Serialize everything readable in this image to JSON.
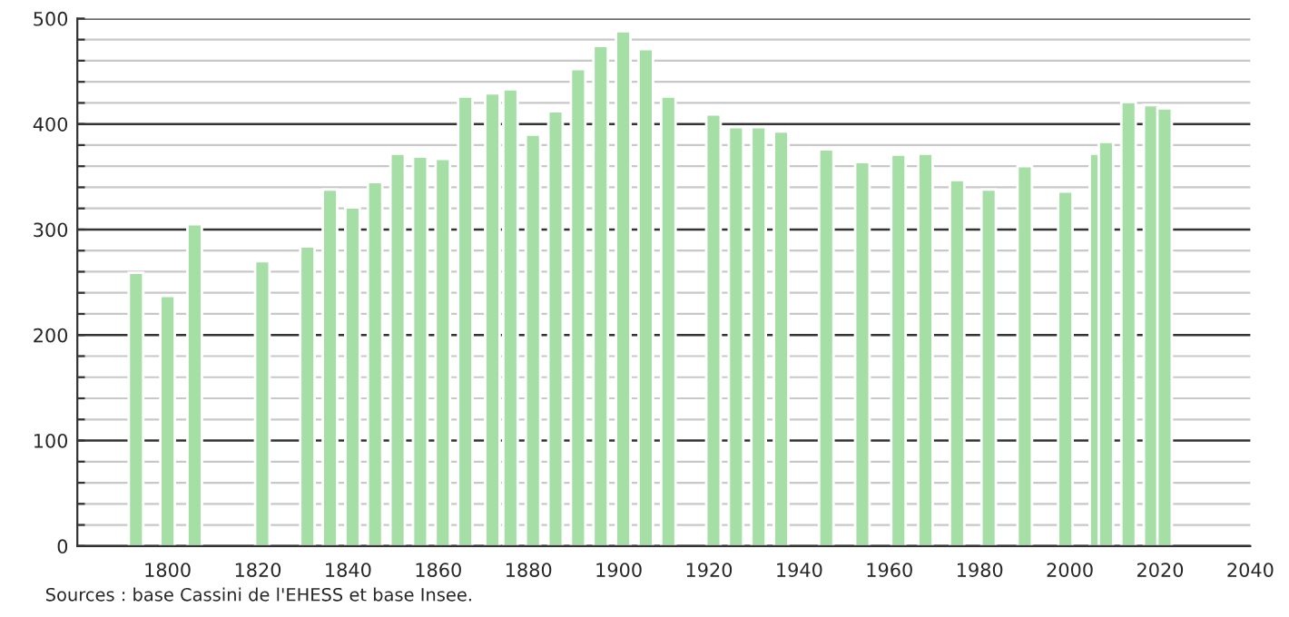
{
  "chart_data": {
    "type": "bar",
    "color": "#a6dfa6",
    "x": [
      1793,
      1800,
      1806,
      1821,
      1831,
      1836,
      1841,
      1846,
      1851,
      1856,
      1861,
      1866,
      1872,
      1876,
      1881,
      1886,
      1891,
      1896,
      1901,
      1906,
      1911,
      1921,
      1926,
      1931,
      1936,
      1946,
      1954,
      1962,
      1968,
      1975,
      1982,
      1990,
      1999,
      2006,
      2008,
      2013,
      2018,
      2021
    ],
    "values": [
      259,
      237,
      305,
      270,
      284,
      338,
      321,
      345,
      372,
      369,
      367,
      426,
      429,
      433,
      390,
      412,
      452,
      474,
      488,
      471,
      426,
      409,
      397,
      397,
      393,
      376,
      364,
      371,
      372,
      347,
      338,
      360,
      336,
      372,
      383,
      421,
      418,
      415
    ],
    "xlim": [
      1780,
      2040
    ],
    "xticks": [
      1800,
      1820,
      1840,
      1860,
      1880,
      1900,
      1920,
      1940,
      1960,
      1980,
      2000,
      2020,
      2040
    ],
    "ylim": [
      0,
      500
    ],
    "yticks": [
      0,
      {
        "value": 20,
        "label": null
      },
      {
        "value": 40,
        "label": null
      },
      {
        "value": 60,
        "label": null
      },
      {
        "value": 80,
        "label": null
      },
      100,
      {
        "value": 120,
        "label": null
      },
      {
        "value": 140,
        "label": null
      },
      {
        "value": 160,
        "label": null
      },
      {
        "value": 180,
        "label": null
      },
      200,
      {
        "value": 220,
        "label": null
      },
      {
        "value": 240,
        "label": null
      },
      {
        "value": 260,
        "label": null
      },
      {
        "value": 280,
        "label": null
      },
      300,
      {
        "value": 320,
        "label": null
      },
      {
        "value": 340,
        "label": null
      },
      {
        "value": 360,
        "label": null
      },
      {
        "value": 380,
        "label": null
      },
      400,
      {
        "value": 420,
        "label": null
      },
      {
        "value": 440,
        "label": null
      },
      {
        "value": 460,
        "label": null
      },
      {
        "value": 480,
        "label": null
      },
      500
    ],
    "grid": "y",
    "annotations": [
      "Sources : base Cassini de l'EHESS et base Insee."
    ]
  }
}
